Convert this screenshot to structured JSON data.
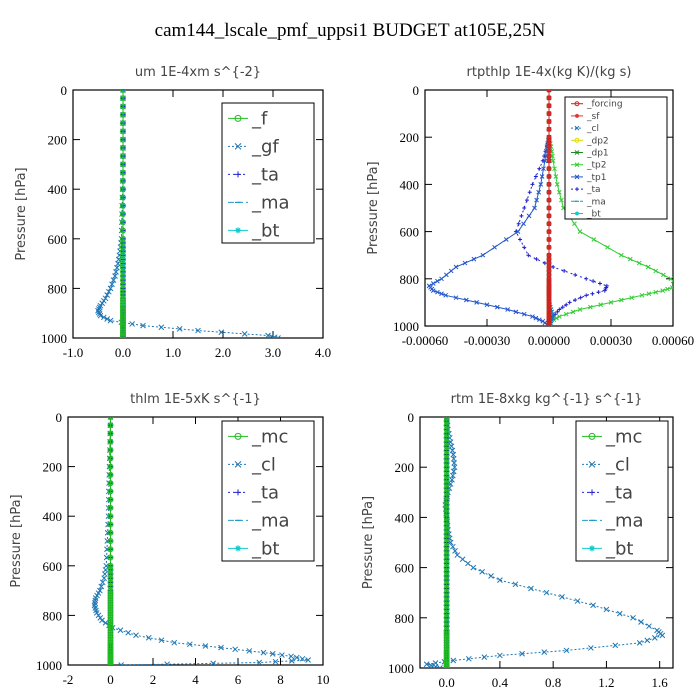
{
  "title": "cam144_lscale_pmf_uppsi1  BUDGET at105E,25N",
  "colors": {
    "_f": "#22bb22",
    "_gf": "#1f77b4",
    "_ta": "#2222cc",
    "_ma": "#2299cc",
    "_bt": "#11cccc",
    "_mc": "#22bb22",
    "_cl": "#1f77b4",
    "_forcing": "#cc2222",
    "_sf": "#dd3333",
    "_dp2": "#dddd00",
    "_dp1": "#228822",
    "_tp2": "#33cc33",
    "_tp1": "#2255cc"
  },
  "chart_data": [
    {
      "type": "line",
      "title": "um   1E-4xm s^{-2}",
      "ylabel": "Pressure [hPa]",
      "ylim": [
        1000,
        0
      ],
      "xlim": [
        -1.0,
        4.0
      ],
      "xticks": [
        -1.0,
        0.0,
        1.0,
        2.0,
        3.0,
        4.0
      ],
      "xtick_labels": [
        "-1.0",
        "0.0",
        "1.0",
        "2.0",
        "3.0",
        "4.0"
      ],
      "yticks": [
        0,
        200,
        400,
        600,
        800,
        1000
      ],
      "legend": [
        "_f",
        "_gf",
        "_ta",
        "_ma",
        "_bt"
      ],
      "legend_position": "top-right",
      "pressure": [
        0,
        100,
        200,
        300,
        400,
        500,
        600,
        650,
        700,
        750,
        800,
        840,
        870,
        890,
        910,
        930,
        950,
        970,
        990,
        1000
      ],
      "series": [
        {
          "name": "_f",
          "values": [
            0,
            0,
            0,
            0,
            0,
            0,
            0,
            0,
            0,
            0,
            0,
            0,
            0,
            0,
            0,
            0,
            0,
            0,
            0,
            0
          ]
        },
        {
          "name": "_gf",
          "values": [
            0,
            0,
            0,
            0,
            -0.01,
            -0.02,
            -0.03,
            -0.06,
            -0.1,
            -0.16,
            -0.25,
            -0.35,
            -0.45,
            -0.5,
            -0.45,
            -0.25,
            0.4,
            1.5,
            2.9,
            3.1
          ]
        },
        {
          "name": "_ta",
          "values": [
            0,
            0,
            0,
            0,
            0,
            0,
            0,
            0,
            0,
            0,
            0,
            0,
            0,
            0,
            0,
            0,
            0,
            0,
            0,
            0
          ]
        },
        {
          "name": "_ma",
          "values": [
            0,
            0,
            0,
            0,
            0,
            0,
            0,
            0,
            0,
            0,
            0,
            0,
            0,
            0,
            0,
            0,
            0,
            0,
            0,
            0
          ]
        },
        {
          "name": "_bt",
          "values": [
            0,
            0,
            0,
            0,
            0,
            0,
            0,
            0,
            0,
            0,
            0,
            0,
            0,
            0,
            0,
            0,
            0,
            0,
            0,
            0
          ]
        }
      ]
    },
    {
      "type": "line",
      "title": "rtpthlp   1E-4x(kg K)/(kg s)",
      "ylabel": "Pressure [hPa]",
      "ylim": [
        1000,
        0
      ],
      "xlim": [
        -0.0006,
        0.0006
      ],
      "xticks": [
        -0.0006,
        -0.0003,
        0.0,
        0.0003,
        0.0006
      ],
      "xtick_labels": [
        "-0.00060",
        "-0.00030",
        "0.00000",
        "0.00030",
        "0.00060"
      ],
      "yticks": [
        0,
        200,
        400,
        600,
        800,
        1000
      ],
      "legend": [
        "_forcing",
        "_sf",
        "_cl",
        "_dp2",
        "_dp1",
        "_tp2",
        "_tp1",
        "_ta",
        "_ma",
        "_bt"
      ],
      "legend_position": "top-right",
      "pressure": [
        0,
        100,
        200,
        240,
        300,
        400,
        500,
        600,
        700,
        750,
        800,
        830,
        850,
        870,
        900,
        930,
        960,
        980,
        1000
      ],
      "series": [
        {
          "name": "_forcing",
          "values": [
            0,
            0,
            0,
            0,
            0,
            0,
            0,
            0,
            0,
            0,
            0,
            0,
            0,
            0,
            0,
            0,
            0,
            0,
            0
          ]
        },
        {
          "name": "_sf",
          "values": [
            0,
            0,
            0,
            0,
            0,
            0,
            0,
            0,
            0,
            0,
            0,
            0,
            0,
            0,
            0,
            0,
            0,
            0,
            0
          ]
        },
        {
          "name": "_cl",
          "values": [
            0,
            0,
            0,
            0,
            0,
            0,
            0,
            0,
            0,
            0,
            0,
            0,
            0,
            0,
            0,
            1e-05,
            2e-05,
            1e-05,
            0
          ]
        },
        {
          "name": "_dp2",
          "values": [
            0,
            0,
            0,
            0,
            0,
            0,
            0,
            0,
            0,
            0,
            0,
            0,
            0,
            0,
            0,
            0,
            0,
            0,
            0
          ]
        },
        {
          "name": "_dp1",
          "values": [
            0,
            0,
            0,
            0,
            0,
            0,
            0,
            0,
            0,
            0,
            0,
            0,
            0,
            0,
            0,
            0,
            0,
            0,
            0
          ]
        },
        {
          "name": "_tp2",
          "values": [
            0,
            0,
            0,
            1e-05,
            2e-05,
            4e-05,
            7e-05,
            0.00015,
            0.00035,
            0.00048,
            0.00059,
            0.00062,
            0.00055,
            0.00045,
            0.0003,
            0.00015,
            5e-05,
            1e-05,
            0
          ]
        },
        {
          "name": "_tp1",
          "values": [
            0,
            0,
            0,
            -1e-05,
            -2e-05,
            -4e-05,
            -7e-05,
            -0.00015,
            -0.00032,
            -0.00045,
            -0.00052,
            -0.00058,
            -0.00056,
            -0.0005,
            -0.00035,
            -0.0002,
            -8e-05,
            -3e-05,
            0
          ]
        },
        {
          "name": "_ta",
          "values": [
            0,
            0,
            0,
            -1e-05,
            -3e-05,
            -8e-05,
            -0.00012,
            -0.00016,
            -0.0001,
            2e-05,
            0.00018,
            0.00028,
            0.00027,
            0.00018,
            0.0001,
            5e-05,
            2e-05,
            0,
            0
          ]
        },
        {
          "name": "_ma",
          "values": [
            0,
            0,
            0,
            0,
            0,
            0,
            0,
            0,
            0,
            0,
            0,
            0,
            0,
            0,
            0,
            0,
            0,
            0,
            0
          ]
        },
        {
          "name": "_bt",
          "values": [
            0,
            0,
            0,
            0,
            0,
            0,
            0,
            0,
            0,
            0,
            0,
            0,
            0,
            0,
            0,
            0,
            0,
            0,
            0
          ]
        }
      ]
    },
    {
      "type": "line",
      "title": "thlm   1E-5xK s^{-1}",
      "ylabel": "Pressure [hPa]",
      "ylim": [
        1000,
        0
      ],
      "xlim": [
        -2,
        10
      ],
      "xticks": [
        -2,
        0,
        2,
        4,
        6,
        8,
        10
      ],
      "xtick_labels": [
        "-2",
        "0",
        "2",
        "4",
        "6",
        "8",
        "10"
      ],
      "yticks": [
        0,
        200,
        400,
        600,
        800,
        1000
      ],
      "legend": [
        "_mc",
        "_cl",
        "_ta",
        "_ma",
        "_bt"
      ],
      "legend_position": "top-right",
      "pressure": [
        0,
        100,
        200,
        300,
        400,
        500,
        600,
        650,
        700,
        730,
        760,
        790,
        820,
        850,
        880,
        910,
        930,
        950,
        965,
        980,
        990,
        1000
      ],
      "series": [
        {
          "name": "_mc",
          "values": [
            0,
            0,
            0,
            0,
            0,
            0,
            0,
            0,
            0,
            0,
            0,
            0,
            0,
            0,
            0,
            0,
            0,
            0,
            0,
            0,
            0,
            0
          ]
        },
        {
          "name": "_cl",
          "values": [
            0,
            -0.02,
            -0.05,
            -0.08,
            -0.1,
            -0.15,
            -0.2,
            -0.3,
            -0.5,
            -0.7,
            -0.75,
            -0.65,
            -0.4,
            0.1,
            1.2,
            3.0,
            5.2,
            7.2,
            8.5,
            9.3,
            7.0,
            0.5
          ]
        },
        {
          "name": "_ta",
          "values": [
            0,
            0,
            0,
            0,
            0,
            0,
            0,
            0,
            0,
            0,
            0,
            0,
            0,
            0,
            0,
            0,
            0,
            0,
            0,
            0,
            0,
            0
          ]
        },
        {
          "name": "_ma",
          "values": [
            0,
            0,
            0,
            0,
            0,
            0,
            0,
            0,
            0,
            0,
            0,
            0,
            0,
            0,
            0,
            0,
            0,
            0,
            0,
            0,
            0,
            0
          ]
        },
        {
          "name": "_bt",
          "values": [
            0,
            0,
            0,
            0,
            0,
            0,
            0,
            0,
            0,
            0,
            0,
            0,
            0,
            0,
            0,
            0,
            0,
            0,
            0,
            0,
            0,
            0
          ]
        }
      ]
    },
    {
      "type": "line",
      "title": "rtm   1E-8xkg kg^{-1} s^{-1}",
      "ylabel": "Pressure [hPa]",
      "ylim": [
        1000,
        0
      ],
      "xlim": [
        -0.2,
        1.7
      ],
      "xticks": [
        0.0,
        0.4,
        0.8,
        1.2,
        1.6
      ],
      "xtick_labels": [
        "0.0",
        "0.4",
        "0.8",
        "1.2",
        "1.6"
      ],
      "yticks": [
        0,
        200,
        400,
        600,
        800,
        1000
      ],
      "legend": [
        "_mc",
        "_cl",
        "_ta",
        "_ma",
        "_bt"
      ],
      "legend_position": "top-right",
      "pressure": [
        0,
        50,
        100,
        150,
        200,
        250,
        300,
        350,
        400,
        450,
        500,
        550,
        600,
        650,
        700,
        750,
        800,
        850,
        870,
        900,
        930,
        950,
        970,
        985,
        1000
      ],
      "series": [
        {
          "name": "_mc",
          "values": [
            0,
            0,
            0,
            0,
            0,
            0,
            0,
            0,
            0,
            0,
            0,
            0,
            0,
            0,
            0,
            0,
            0,
            0,
            0,
            0,
            0,
            0,
            0,
            0,
            0
          ]
        },
        {
          "name": "_cl",
          "values": [
            0,
            0.01,
            0.03,
            0.05,
            0.06,
            0.04,
            0.01,
            -0.01,
            0,
            0.01,
            0.03,
            0.08,
            0.2,
            0.4,
            0.75,
            1.1,
            1.4,
            1.58,
            1.62,
            1.45,
            0.9,
            0.4,
            0.05,
            -0.15,
            -0.05
          ]
        },
        {
          "name": "_ta",
          "values": [
            0,
            0,
            0,
            0,
            0,
            0,
            0,
            0,
            0,
            0,
            0,
            0,
            0,
            0,
            0,
            0,
            0,
            0,
            0,
            0,
            0,
            0,
            0,
            0,
            0
          ]
        },
        {
          "name": "_ma",
          "values": [
            0,
            0,
            0,
            0,
            0,
            0,
            0,
            0,
            0,
            0,
            0,
            0,
            0,
            0,
            0,
            0,
            0,
            0,
            0,
            0,
            0,
            0,
            0,
            0,
            0
          ]
        },
        {
          "name": "_bt",
          "values": [
            0,
            0,
            0,
            0,
            0,
            0,
            0,
            0,
            0,
            0,
            0,
            0,
            0,
            0,
            0,
            0,
            0,
            0,
            0,
            0,
            0,
            0,
            0,
            0,
            0
          ]
        }
      ]
    }
  ]
}
